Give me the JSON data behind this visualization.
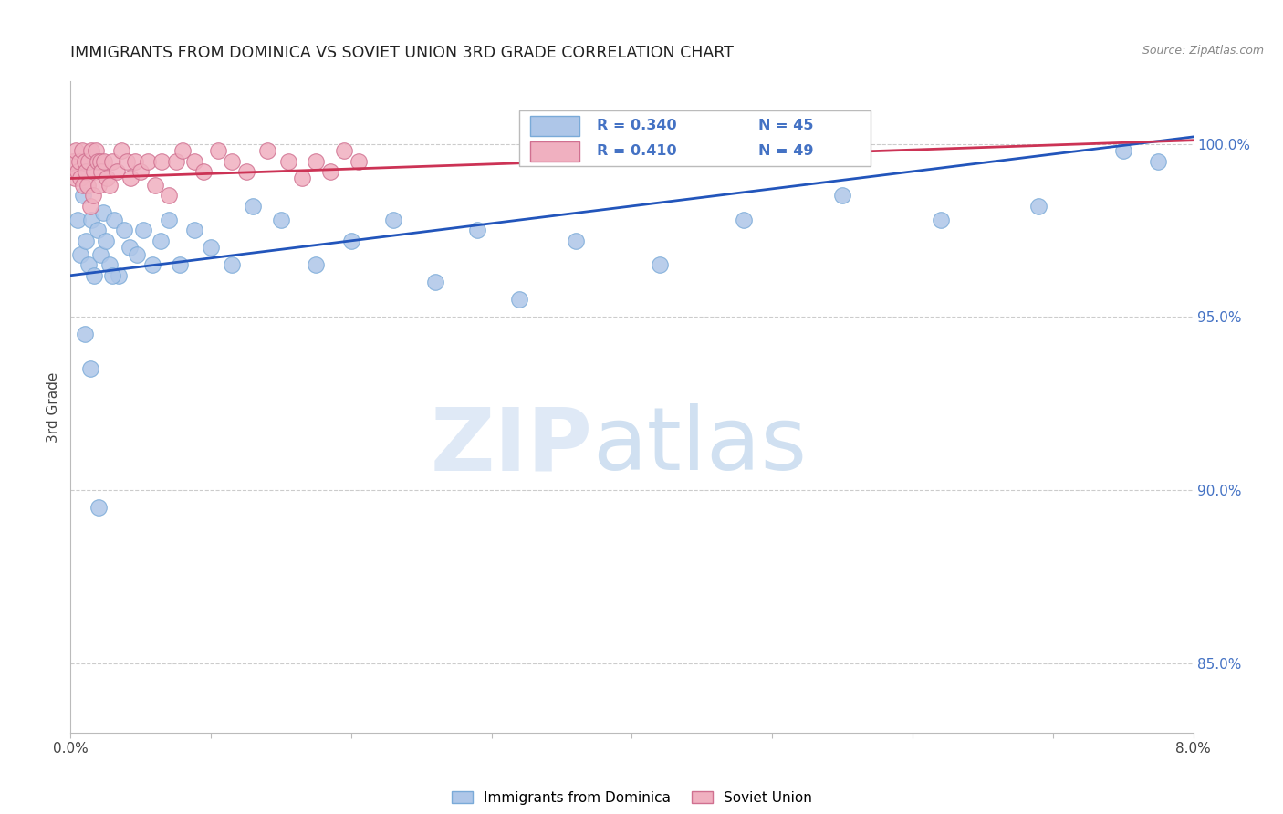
{
  "title": "IMMIGRANTS FROM DOMINICA VS SOVIET UNION 3RD GRADE CORRELATION CHART",
  "source": "Source: ZipAtlas.com",
  "ylabel": "3rd Grade",
  "y_ticks": [
    85.0,
    90.0,
    95.0,
    100.0
  ],
  "x_min": 0.0,
  "x_max": 8.0,
  "y_min": 83.0,
  "y_max": 101.8,
  "dominica_color": "#aec6e8",
  "dominica_edge": "#7aaad8",
  "soviet_color": "#f0b0c0",
  "soviet_edge": "#d07090",
  "trend_blue": "#2255bb",
  "trend_pink": "#cc3355",
  "legend_label_blue": "Immigrants from Dominica",
  "legend_label_pink": "Soviet Union",
  "watermark_left": "ZIP",
  "watermark_right": "atlas",
  "dominica_x": [
    0.05,
    0.07,
    0.09,
    0.11,
    0.13,
    0.15,
    0.17,
    0.19,
    0.21,
    0.23,
    0.25,
    0.28,
    0.31,
    0.34,
    0.38,
    0.42,
    0.47,
    0.52,
    0.58,
    0.64,
    0.7,
    0.78,
    0.88,
    1.0,
    1.15,
    1.3,
    1.5,
    1.75,
    2.0,
    2.3,
    2.6,
    2.9,
    3.2,
    3.6,
    4.2,
    4.8,
    5.5,
    6.2,
    6.9,
    7.5,
    7.75,
    0.1,
    0.14,
    0.2,
    0.3
  ],
  "dominica_y": [
    97.8,
    96.8,
    98.5,
    97.2,
    96.5,
    97.8,
    96.2,
    97.5,
    96.8,
    98.0,
    97.2,
    96.5,
    97.8,
    96.2,
    97.5,
    97.0,
    96.8,
    97.5,
    96.5,
    97.2,
    97.8,
    96.5,
    97.5,
    97.0,
    96.5,
    98.2,
    97.8,
    96.5,
    97.2,
    97.8,
    96.0,
    97.5,
    95.5,
    97.2,
    96.5,
    97.8,
    98.5,
    97.8,
    98.2,
    99.8,
    99.5,
    94.5,
    93.5,
    89.5,
    96.2
  ],
  "soviet_x": [
    0.02,
    0.03,
    0.04,
    0.05,
    0.06,
    0.07,
    0.08,
    0.09,
    0.1,
    0.11,
    0.12,
    0.13,
    0.14,
    0.15,
    0.16,
    0.17,
    0.18,
    0.19,
    0.2,
    0.21,
    0.22,
    0.24,
    0.26,
    0.28,
    0.3,
    0.33,
    0.36,
    0.4,
    0.43,
    0.46,
    0.5,
    0.55,
    0.6,
    0.65,
    0.7,
    0.75,
    0.8,
    0.88,
    0.95,
    1.05,
    1.15,
    1.25,
    1.4,
    1.55,
    1.65,
    1.75,
    1.85,
    1.95,
    2.05
  ],
  "soviet_y": [
    99.5,
    99.0,
    99.8,
    99.2,
    99.5,
    99.0,
    99.8,
    98.8,
    99.5,
    99.2,
    98.8,
    99.5,
    98.2,
    99.8,
    98.5,
    99.2,
    99.8,
    99.5,
    98.8,
    99.5,
    99.2,
    99.5,
    99.0,
    98.8,
    99.5,
    99.2,
    99.8,
    99.5,
    99.0,
    99.5,
    99.2,
    99.5,
    98.8,
    99.5,
    98.5,
    99.5,
    99.8,
    99.5,
    99.2,
    99.8,
    99.5,
    99.2,
    99.8,
    99.5,
    99.0,
    99.5,
    99.2,
    99.8,
    99.5
  ],
  "blue_trend_y0": 96.2,
  "blue_trend_y1": 100.2,
  "pink_trend_y0": 99.0,
  "pink_trend_y1": 100.1
}
